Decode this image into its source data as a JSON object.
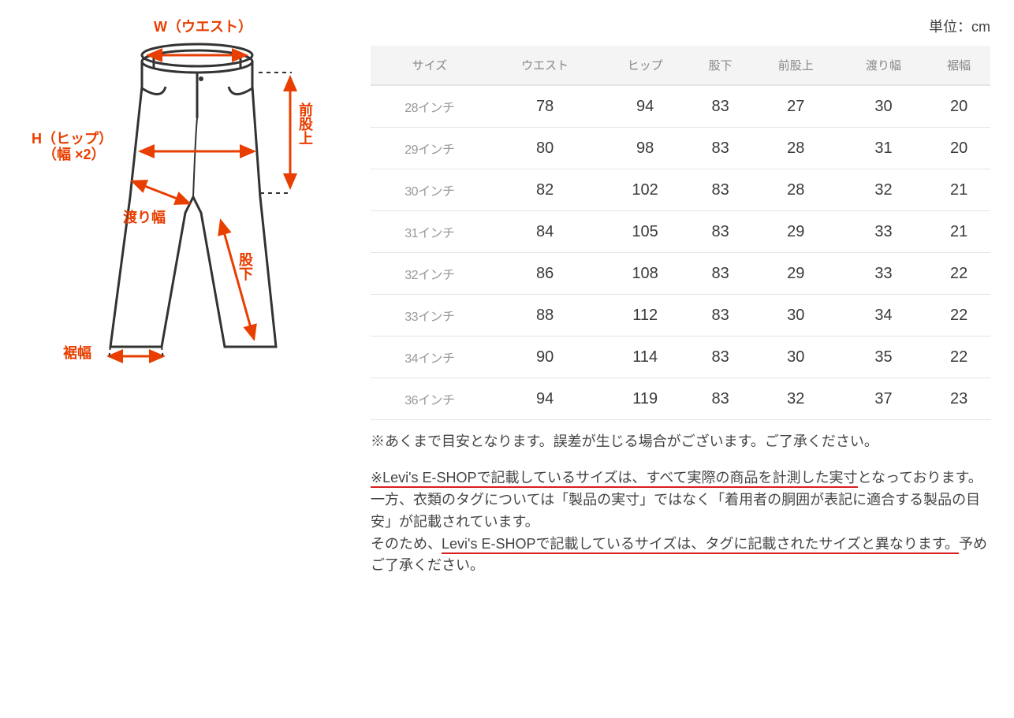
{
  "unit_label": "単位：cm",
  "diagram": {
    "labels": {
      "waist": "W（ウエスト）",
      "hip_line1": "H（ヒップ）",
      "hip_line2": "（幅 ×2）",
      "front_rise": "前股上",
      "thigh": "渡り幅",
      "inseam": "股下",
      "hem": "裾幅"
    },
    "label_color": "#e83e00",
    "arrow_color": "#e83e00",
    "outline_color": "#333333"
  },
  "table": {
    "columns": [
      "サイズ",
      "ウエスト",
      "ヒップ",
      "股下",
      "前股上",
      "渡り幅",
      "裾幅"
    ],
    "rows": [
      [
        "28インチ",
        "78",
        "94",
        "83",
        "27",
        "30",
        "20"
      ],
      [
        "29インチ",
        "80",
        "98",
        "83",
        "28",
        "31",
        "20"
      ],
      [
        "30インチ",
        "82",
        "102",
        "83",
        "28",
        "32",
        "21"
      ],
      [
        "31インチ",
        "84",
        "105",
        "83",
        "29",
        "33",
        "21"
      ],
      [
        "32インチ",
        "86",
        "108",
        "83",
        "29",
        "33",
        "22"
      ],
      [
        "33インチ",
        "88",
        "112",
        "83",
        "30",
        "34",
        "22"
      ],
      [
        "34インチ",
        "90",
        "114",
        "83",
        "30",
        "35",
        "22"
      ],
      [
        "36インチ",
        "94",
        "119",
        "83",
        "32",
        "37",
        "23"
      ]
    ],
    "header_bg": "#f4f4f4",
    "header_color": "#888888",
    "cell_color": "#3a3a3a",
    "rowhdr_color": "#999999",
    "border_color": "#e5e5e5"
  },
  "notes": {
    "disclaimer": "※あくまで目安となります。誤差が生じる場合がございます。ご了承ください。",
    "p2_u1": "※Levi's E-SHOPで記載しているサイズは、すべて実際の商品を計測した実寸",
    "p2_rest": "となっております。一方、衣類のタグについては「製品の実寸」ではなく「着用者の胴囲が表記に適合する製品の目安」が記載されています。",
    "p3_pre": "そのため、",
    "p3_u": "Levi's E-SHOPで記載しているサイズは、タグに記載されたサイズと異なります。",
    "p3_post": "予めご了承ください。",
    "underline_color": "#d82020"
  }
}
